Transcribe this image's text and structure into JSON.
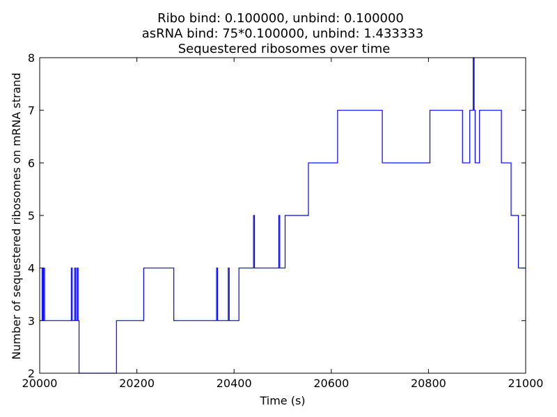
{
  "chart_data": {
    "type": "line",
    "title_lines": [
      "Ribo bind: 0.100000, unbind: 0.100000",
      "asRNA bind: 75*0.100000, unbind: 1.433333",
      "Sequestered ribosomes over time"
    ],
    "xlabel": "Time (s)",
    "ylabel": "Number of sequestered ribosomes on mRNA strand",
    "xlim": [
      20000,
      21000
    ],
    "ylim": [
      2,
      8
    ],
    "xticks": [
      20000,
      20200,
      20400,
      20600,
      20800,
      21000
    ],
    "yticks": [
      2,
      3,
      4,
      5,
      6,
      7,
      8
    ],
    "grid": false,
    "legend": "none",
    "line_color": "#0000ff",
    "series": [
      {
        "step": "post",
        "x": [
          20000,
          20005,
          20007,
          20008,
          20010,
          20065,
          20067,
          20072,
          20074,
          20077,
          20079,
          20081,
          20158,
          20214,
          20276,
          20364,
          20366,
          20388,
          20390,
          20410,
          20440,
          20442,
          20492,
          20494,
          20505,
          20553,
          20613,
          20705,
          20803,
          20870,
          20885,
          20892,
          20894,
          20896,
          20905,
          20950,
          20970,
          20985,
          21000
        ],
        "y": [
          3,
          4,
          3,
          4,
          3,
          4,
          3,
          4,
          3,
          4,
          3,
          2,
          3,
          4,
          3,
          4,
          3,
          4,
          3,
          4,
          5,
          4,
          5,
          4,
          5,
          6,
          7,
          6,
          7,
          6,
          7,
          8,
          7,
          6,
          7,
          6,
          5,
          4,
          4
        ]
      }
    ]
  }
}
